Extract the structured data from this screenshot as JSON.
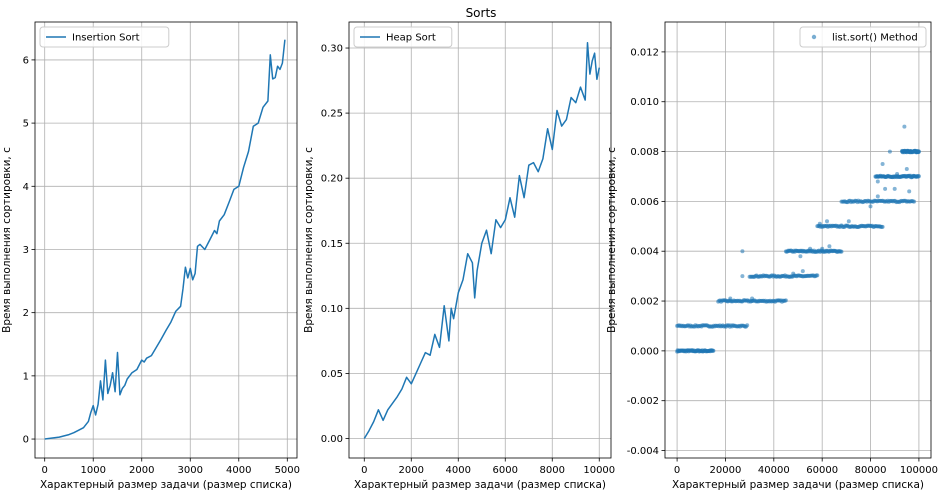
{
  "suptitle": "Sorts",
  "colors": {
    "series": "#1f77b4",
    "grid": "#b0b0b0",
    "axis": "#000000",
    "legend_border": "#cccccc"
  },
  "chart_data": [
    {
      "type": "line",
      "title": "",
      "xlabel": "Характерный размер задачи (размер списка)",
      "ylabel": "Время выполнения сортировки, с",
      "xlim": [
        -200,
        5200
      ],
      "ylim": [
        -0.3,
        6.6
      ],
      "xticks": [
        0,
        1000,
        2000,
        3000,
        4000,
        5000
      ],
      "yticks": [
        0,
        1,
        2,
        3,
        4,
        5,
        6
      ],
      "grid": true,
      "legend_position": "top-left",
      "series": [
        {
          "name": "Insertion Sort",
          "x": [
            0,
            100,
            200,
            300,
            400,
            500,
            600,
            700,
            800,
            900,
            950,
            1000,
            1050,
            1100,
            1150,
            1200,
            1250,
            1300,
            1350,
            1400,
            1450,
            1500,
            1550,
            1600,
            1650,
            1700,
            1800,
            1900,
            2000,
            2050,
            2100,
            2200,
            2300,
            2400,
            2500,
            2600,
            2700,
            2800,
            2850,
            2900,
            2950,
            3000,
            3050,
            3100,
            3150,
            3200,
            3300,
            3400,
            3500,
            3550,
            3600,
            3700,
            3800,
            3900,
            4000,
            4100,
            4200,
            4300,
            4400,
            4500,
            4600,
            4650,
            4700,
            4750,
            4800,
            4850,
            4900,
            4950
          ],
          "y": [
            0.0,
            0.01,
            0.02,
            0.03,
            0.05,
            0.07,
            0.1,
            0.14,
            0.18,
            0.28,
            0.42,
            0.53,
            0.38,
            0.55,
            0.92,
            0.62,
            1.25,
            0.72,
            0.85,
            1.05,
            0.75,
            1.37,
            0.7,
            0.8,
            0.85,
            0.95,
            1.05,
            1.1,
            1.25,
            1.22,
            1.28,
            1.32,
            1.45,
            1.58,
            1.72,
            1.85,
            2.02,
            2.1,
            2.38,
            2.72,
            2.55,
            2.7,
            2.52,
            2.62,
            3.05,
            3.08,
            3.0,
            3.15,
            3.3,
            3.25,
            3.45,
            3.55,
            3.75,
            3.95,
            4.0,
            4.3,
            4.55,
            4.95,
            5.0,
            5.25,
            5.35,
            6.08,
            5.7,
            5.72,
            5.9,
            5.85,
            5.95,
            6.32
          ]
        }
      ]
    },
    {
      "type": "line",
      "title": "",
      "xlabel": "Характерный размер задачи (размер списка)",
      "ylabel": "Время выполнения сортировки, с",
      "xlim": [
        -650,
        10500
      ],
      "ylim": [
        -0.015,
        0.32
      ],
      "xticks": [
        0,
        2000,
        4000,
        6000,
        8000,
        10000
      ],
      "yticks": [
        0.0,
        0.05,
        0.1,
        0.15,
        0.2,
        0.25,
        0.3
      ],
      "grid": true,
      "legend_position": "top-left",
      "series": [
        {
          "name": "Heap Sort",
          "x": [
            0,
            200,
            400,
            600,
            800,
            1000,
            1200,
            1400,
            1600,
            1800,
            2000,
            2200,
            2400,
            2600,
            2800,
            3000,
            3200,
            3400,
            3600,
            3700,
            3800,
            4000,
            4200,
            4400,
            4600,
            4700,
            4800,
            5000,
            5200,
            5400,
            5600,
            5800,
            6000,
            6200,
            6400,
            6600,
            6800,
            7000,
            7200,
            7400,
            7600,
            7800,
            8000,
            8200,
            8400,
            8600,
            8800,
            9000,
            9200,
            9400,
            9500,
            9600,
            9700,
            9800,
            9900,
            10000
          ],
          "y": [
            0.0,
            0.006,
            0.013,
            0.022,
            0.014,
            0.022,
            0.027,
            0.032,
            0.038,
            0.047,
            0.042,
            0.05,
            0.058,
            0.066,
            0.064,
            0.08,
            0.07,
            0.102,
            0.075,
            0.1,
            0.092,
            0.112,
            0.122,
            0.142,
            0.135,
            0.108,
            0.129,
            0.15,
            0.16,
            0.142,
            0.168,
            0.162,
            0.168,
            0.185,
            0.17,
            0.202,
            0.185,
            0.21,
            0.212,
            0.205,
            0.215,
            0.238,
            0.222,
            0.252,
            0.24,
            0.245,
            0.262,
            0.258,
            0.27,
            0.26,
            0.304,
            0.28,
            0.29,
            0.296,
            0.276,
            0.285
          ]
        }
      ]
    },
    {
      "type": "scatter",
      "title": "",
      "xlabel": "Характерный размер задачи (размер списка)",
      "ylabel": "Время выполнения сортировки, с",
      "xlim": [
        -5000,
        105000
      ],
      "ylim": [
        -0.0043,
        0.0132
      ],
      "xticks": [
        0,
        20000,
        40000,
        60000,
        80000,
        100000
      ],
      "yticks": [
        -0.004,
        -0.002,
        0.0,
        0.002,
        0.004,
        0.006,
        0.008,
        0.01,
        0.012
      ],
      "grid": true,
      "legend_position": "top-right",
      "series": [
        {
          "name": "list.sort() Method",
          "bands": [
            {
              "y": 0.0,
              "x_range": [
                0,
                15000
              ]
            },
            {
              "y": 0.001,
              "x_range": [
                0,
                29000
              ]
            },
            {
              "y": 0.002,
              "x_range": [
                17000,
                45000
              ]
            },
            {
              "y": 0.003,
              "x_range": [
                30000,
                58000
              ]
            },
            {
              "y": 0.004,
              "x_range": [
                45000,
                68000
              ]
            },
            {
              "y": 0.005,
              "x_range": [
                58000,
                85000
              ]
            },
            {
              "y": 0.006,
              "x_range": [
                68000,
                98000
              ]
            },
            {
              "y": 0.007,
              "x_range": [
                82000,
                100000
              ]
            },
            {
              "y": 0.008,
              "x_range": [
                93000,
                100000
              ]
            }
          ],
          "outliers": [
            {
              "x": 22000,
              "y": 0.0021
            },
            {
              "x": 27000,
              "y": 0.004
            },
            {
              "x": 27000,
              "y": 0.003
            },
            {
              "x": 31000,
              "y": 0.0021
            },
            {
              "x": 48000,
              "y": 0.0031
            },
            {
              "x": 52000,
              "y": 0.0032
            },
            {
              "x": 55000,
              "y": 0.0041
            },
            {
              "x": 60000,
              "y": 0.0041
            },
            {
              "x": 63000,
              "y": 0.0042
            },
            {
              "x": 51000,
              "y": 0.0038
            },
            {
              "x": 59000,
              "y": 0.0051
            },
            {
              "x": 62000,
              "y": 0.0052
            },
            {
              "x": 71000,
              "y": 0.0052
            },
            {
              "x": 80000,
              "y": 0.0058
            },
            {
              "x": 83000,
              "y": 0.0062
            },
            {
              "x": 83000,
              "y": 0.0068
            },
            {
              "x": 85000,
              "y": 0.0075
            },
            {
              "x": 86000,
              "y": 0.0065
            },
            {
              "x": 88000,
              "y": 0.008
            },
            {
              "x": 90000,
              "y": 0.0065
            },
            {
              "x": 94000,
              "y": 0.009
            },
            {
              "x": 95000,
              "y": 0.0073
            },
            {
              "x": 96000,
              "y": 0.0064
            },
            {
              "x": 98000,
              "y": 0.008
            },
            {
              "x": 91000,
              "y": 0.0071
            }
          ]
        }
      ]
    }
  ]
}
